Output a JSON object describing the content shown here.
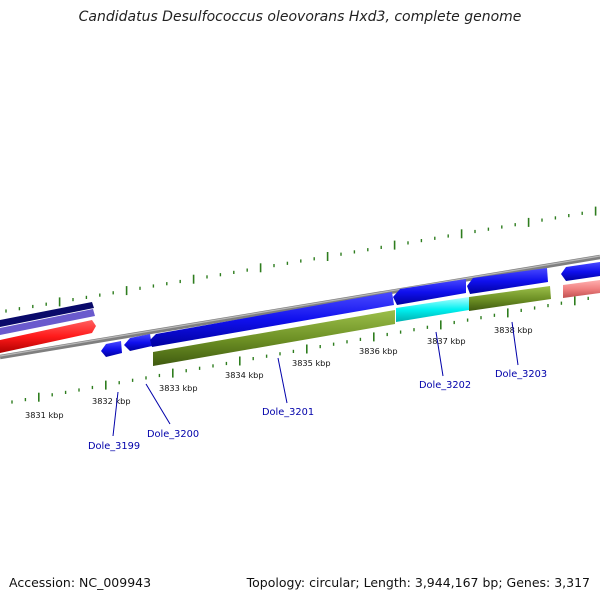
{
  "title": "Candidatus Desulfococcus oleovorans Hxd3, complete genome",
  "footer": {
    "accession": "Accession: NC_009943",
    "topology": "Topology: circular; Length: 3,944,167 bp; Genes: 3,317"
  },
  "scale_labels": [
    "3831 kbp",
    "3832 kbp",
    "3833 kbp",
    "3834 kbp",
    "3835 kbp",
    "3836 kbp",
    "3837 kbp",
    "3838 kbp"
  ],
  "gene_labels": [
    "Dole_3199",
    "Dole_3200",
    "Dole_3201",
    "Dole_3202",
    "Dole_3203"
  ],
  "colors": {
    "backbone": "#8a8a8a",
    "tick": "#2e7d1e",
    "cds_blue": "#1010ee",
    "cds_dark_navy": "#0a0a6a",
    "cds_slate": "#6a5acd",
    "cds_red": "#ff1a1a",
    "cds_olive": "#6b8e23",
    "cds_cyan": "#00f0f0",
    "cds_pink": "#f08080",
    "label": "#0000aa"
  }
}
